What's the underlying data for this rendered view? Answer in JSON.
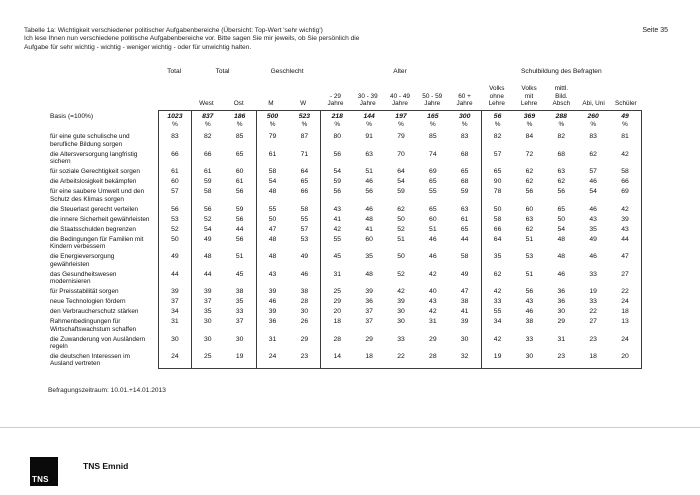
{
  "page": {
    "title_lines": [
      "Tabelle 1a: Wichtigkeit verschiedener politischer Aufgabenbereiche (Übersicht: Top-Wert 'sehr wichtig')",
      "Ich lese Ihnen nun verschiedene politische Aufgabenbereiche vor. Bitte sagen Sie mir jeweils, ob Sie persönlich die",
      "Aufgabe für sehr wichtig - wichtig - weniger wichtig - oder für unwichtig halten."
    ],
    "page_number": "Seite 35",
    "footnote": "Befragungszeitraum: 10.01.+14.01.2013",
    "footer": {
      "logo_text": "TNS",
      "brand": "TNS Emnid"
    }
  },
  "table": {
    "basis_label": "Basis (=100%)",
    "percent_symbol": "%",
    "groups": [
      {
        "label": "Total",
        "columns": [
          {
            "label": "",
            "basis": "1023"
          }
        ]
      },
      {
        "label": "Total",
        "columns": [
          {
            "label": "West",
            "basis": "837"
          },
          {
            "label": "Ost",
            "basis": "186"
          }
        ]
      },
      {
        "label": "Geschlecht",
        "columns": [
          {
            "label": "M",
            "basis": "500"
          },
          {
            "label": "W",
            "basis": "523"
          }
        ]
      },
      {
        "label": "Alter",
        "columns": [
          {
            "label": "- 29\nJahre",
            "basis": "218"
          },
          {
            "label": "30 - 39\nJahre",
            "basis": "144"
          },
          {
            "label": "40 - 49\nJahre",
            "basis": "197"
          },
          {
            "label": "50 - 59\nJahre",
            "basis": "165"
          },
          {
            "label": "60 +\nJahre",
            "basis": "300"
          }
        ]
      },
      {
        "label": "Schulbildung des Befragten",
        "columns": [
          {
            "label": "Volks\nohne\nLehre",
            "basis": "56"
          },
          {
            "label": "Volks\nmit\nLehre",
            "basis": "369"
          },
          {
            "label": "mittl.\nBild.\nAbsch",
            "basis": "288"
          },
          {
            "label": "Abi, Uni",
            "basis": "260"
          },
          {
            "label": "Schüler",
            "basis": "49"
          }
        ]
      }
    ],
    "rows": [
      {
        "label": "für eine gute schulische und berufliche Bildung sorgen",
        "values": [
          83,
          82,
          85,
          79,
          87,
          80,
          91,
          79,
          85,
          83,
          82,
          84,
          82,
          83,
          81
        ]
      },
      {
        "label": "die Altersversorgung langfristig sichern",
        "values": [
          66,
          66,
          65,
          61,
          71,
          56,
          63,
          70,
          74,
          68,
          57,
          72,
          68,
          62,
          42
        ]
      },
      {
        "label": "für soziale Gerechtigkeit sorgen",
        "values": [
          61,
          61,
          60,
          58,
          64,
          54,
          51,
          64,
          69,
          65,
          65,
          62,
          63,
          57,
          58
        ]
      },
      {
        "label": "die Arbeitslosigkeit bekämpfen",
        "values": [
          60,
          59,
          61,
          54,
          65,
          59,
          46,
          54,
          65,
          68,
          90,
          62,
          62,
          46,
          66
        ]
      },
      {
        "label": "für eine saubere Umwelt und den Schutz des Klimas sorgen",
        "values": [
          57,
          58,
          56,
          48,
          66,
          56,
          56,
          59,
          55,
          59,
          78,
          56,
          56,
          54,
          69
        ]
      },
      {
        "label": "die Steuerlast gerecht verteilen",
        "values": [
          56,
          56,
          59,
          55,
          58,
          43,
          46,
          62,
          65,
          63,
          50,
          60,
          65,
          46,
          42
        ]
      },
      {
        "label": "die innere Sicherheit gewährleisten",
        "values": [
          53,
          52,
          56,
          50,
          55,
          41,
          48,
          50,
          60,
          61,
          58,
          63,
          50,
          43,
          39
        ]
      },
      {
        "label": "die Staatsschulden begrenzen",
        "values": [
          52,
          54,
          44,
          47,
          57,
          42,
          41,
          52,
          51,
          65,
          66,
          62,
          54,
          35,
          43
        ]
      },
      {
        "label": "die Bedingungen für Familien mit Kindern verbessern",
        "values": [
          50,
          49,
          56,
          48,
          53,
          55,
          60,
          51,
          46,
          44,
          64,
          51,
          48,
          49,
          44
        ]
      },
      {
        "label": "die Energieversorgung gewährleisten",
        "values": [
          49,
          48,
          51,
          48,
          49,
          45,
          35,
          50,
          46,
          58,
          35,
          53,
          48,
          46,
          47
        ]
      },
      {
        "label": "das Gesundheitswesen modernisieren",
        "values": [
          44,
          44,
          45,
          43,
          46,
          31,
          48,
          52,
          42,
          49,
          62,
          51,
          46,
          33,
          27
        ]
      },
      {
        "label": "für Preisstabilität sorgen",
        "values": [
          39,
          39,
          38,
          39,
          38,
          25,
          39,
          42,
          40,
          47,
          42,
          56,
          36,
          19,
          22
        ]
      },
      {
        "label": "neue Technologien fördern",
        "values": [
          37,
          37,
          35,
          46,
          28,
          29,
          36,
          39,
          43,
          38,
          33,
          43,
          36,
          33,
          24
        ]
      },
      {
        "label": "den Verbraucherschutz stärken",
        "values": [
          34,
          35,
          33,
          39,
          30,
          20,
          37,
          30,
          42,
          41,
          55,
          46,
          30,
          22,
          18
        ]
      },
      {
        "label": "Rahmenbedingungen für Wirtschaftswachstum schaffen",
        "values": [
          31,
          30,
          37,
          36,
          26,
          18,
          37,
          30,
          31,
          39,
          34,
          38,
          29,
          27,
          13
        ]
      },
      {
        "label": "die Zuwanderung von Ausländern regeln",
        "values": [
          30,
          30,
          30,
          31,
          29,
          28,
          29,
          33,
          29,
          30,
          42,
          33,
          31,
          23,
          24
        ]
      },
      {
        "label": "die deutschen Interessen im Ausland vertreten",
        "values": [
          24,
          25,
          19,
          24,
          23,
          14,
          18,
          22,
          28,
          32,
          19,
          30,
          23,
          18,
          20
        ]
      }
    ]
  }
}
